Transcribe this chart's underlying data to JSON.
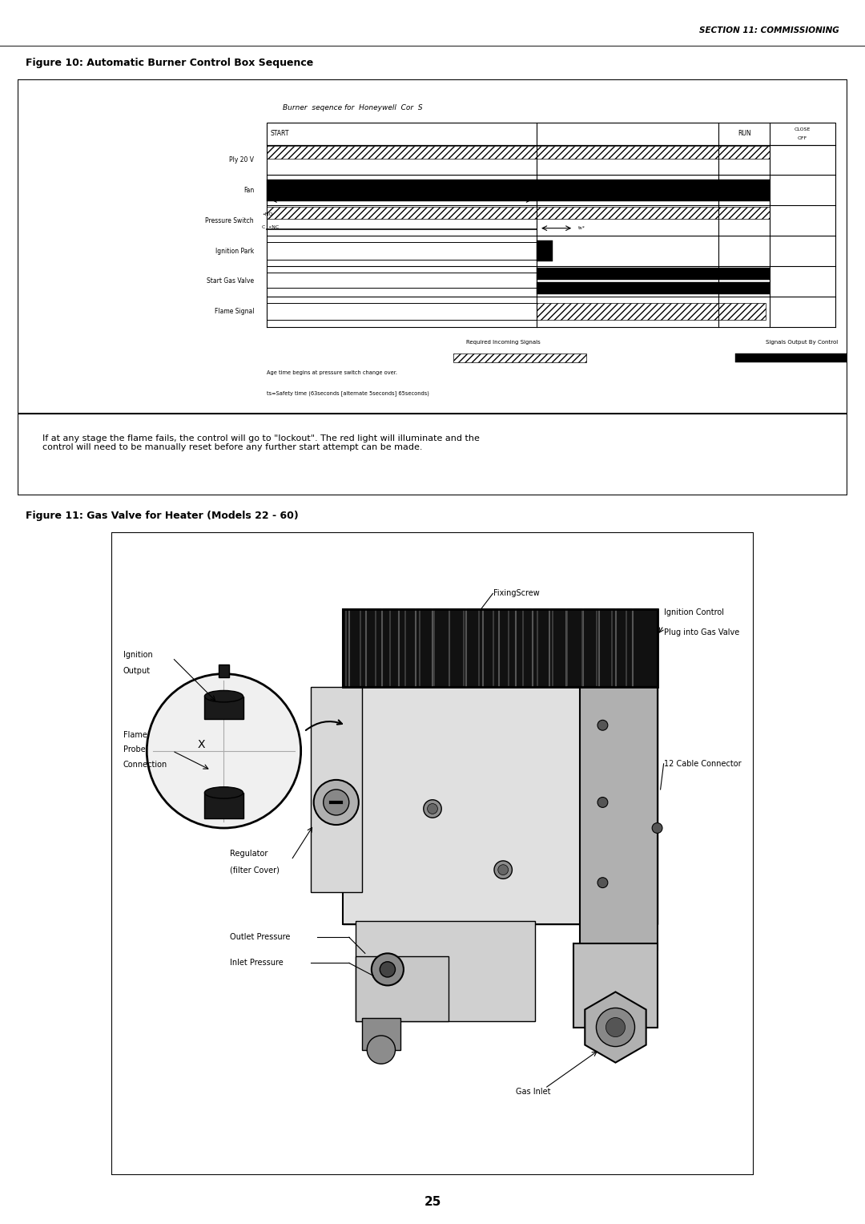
{
  "page_header": "SECTION 11: COMMISSIONING",
  "fig10_title": "Figure 10: Automatic Burner Control Box Sequence",
  "fig11_title": "Figure 11: Gas Valve for Heater (Models 22 - 60)",
  "page_number": "25",
  "bg_color": "#ffffff",
  "diagram_title": "Burner  seqence for  Honeywell  Cor  S",
  "footnote1": "Age time begins at pressure switch change over.",
  "footnote2": "ts=Safety time (63seconds [alternate 5seconds] 65seconds)",
  "legend1": "Required Incoming Signals",
  "legend2": "Signals Output By Control",
  "body_text": "If at any stage the flame fails, the control will go to \"lockout\". The red light will illuminate and the\ncontrol will need to be manually reset before any further start attempt can be made.",
  "fig11_labels": {
    "fixing_screw": "FixingScrew",
    "ignition_control": "Ignition Control\nPlug into Gas Valve",
    "ignition_output": "Ignition\nOutput",
    "flame_probe": "Flame\nProbe\nConnection",
    "regulator": "Regulator\n(filter Cover)",
    "outlet_pressure": "Outlet Pressure",
    "inlet_pressure": "Inlet Pressure",
    "cable_connector": "12 Cable Connector",
    "gas_inlet": "Gas Inlet"
  }
}
